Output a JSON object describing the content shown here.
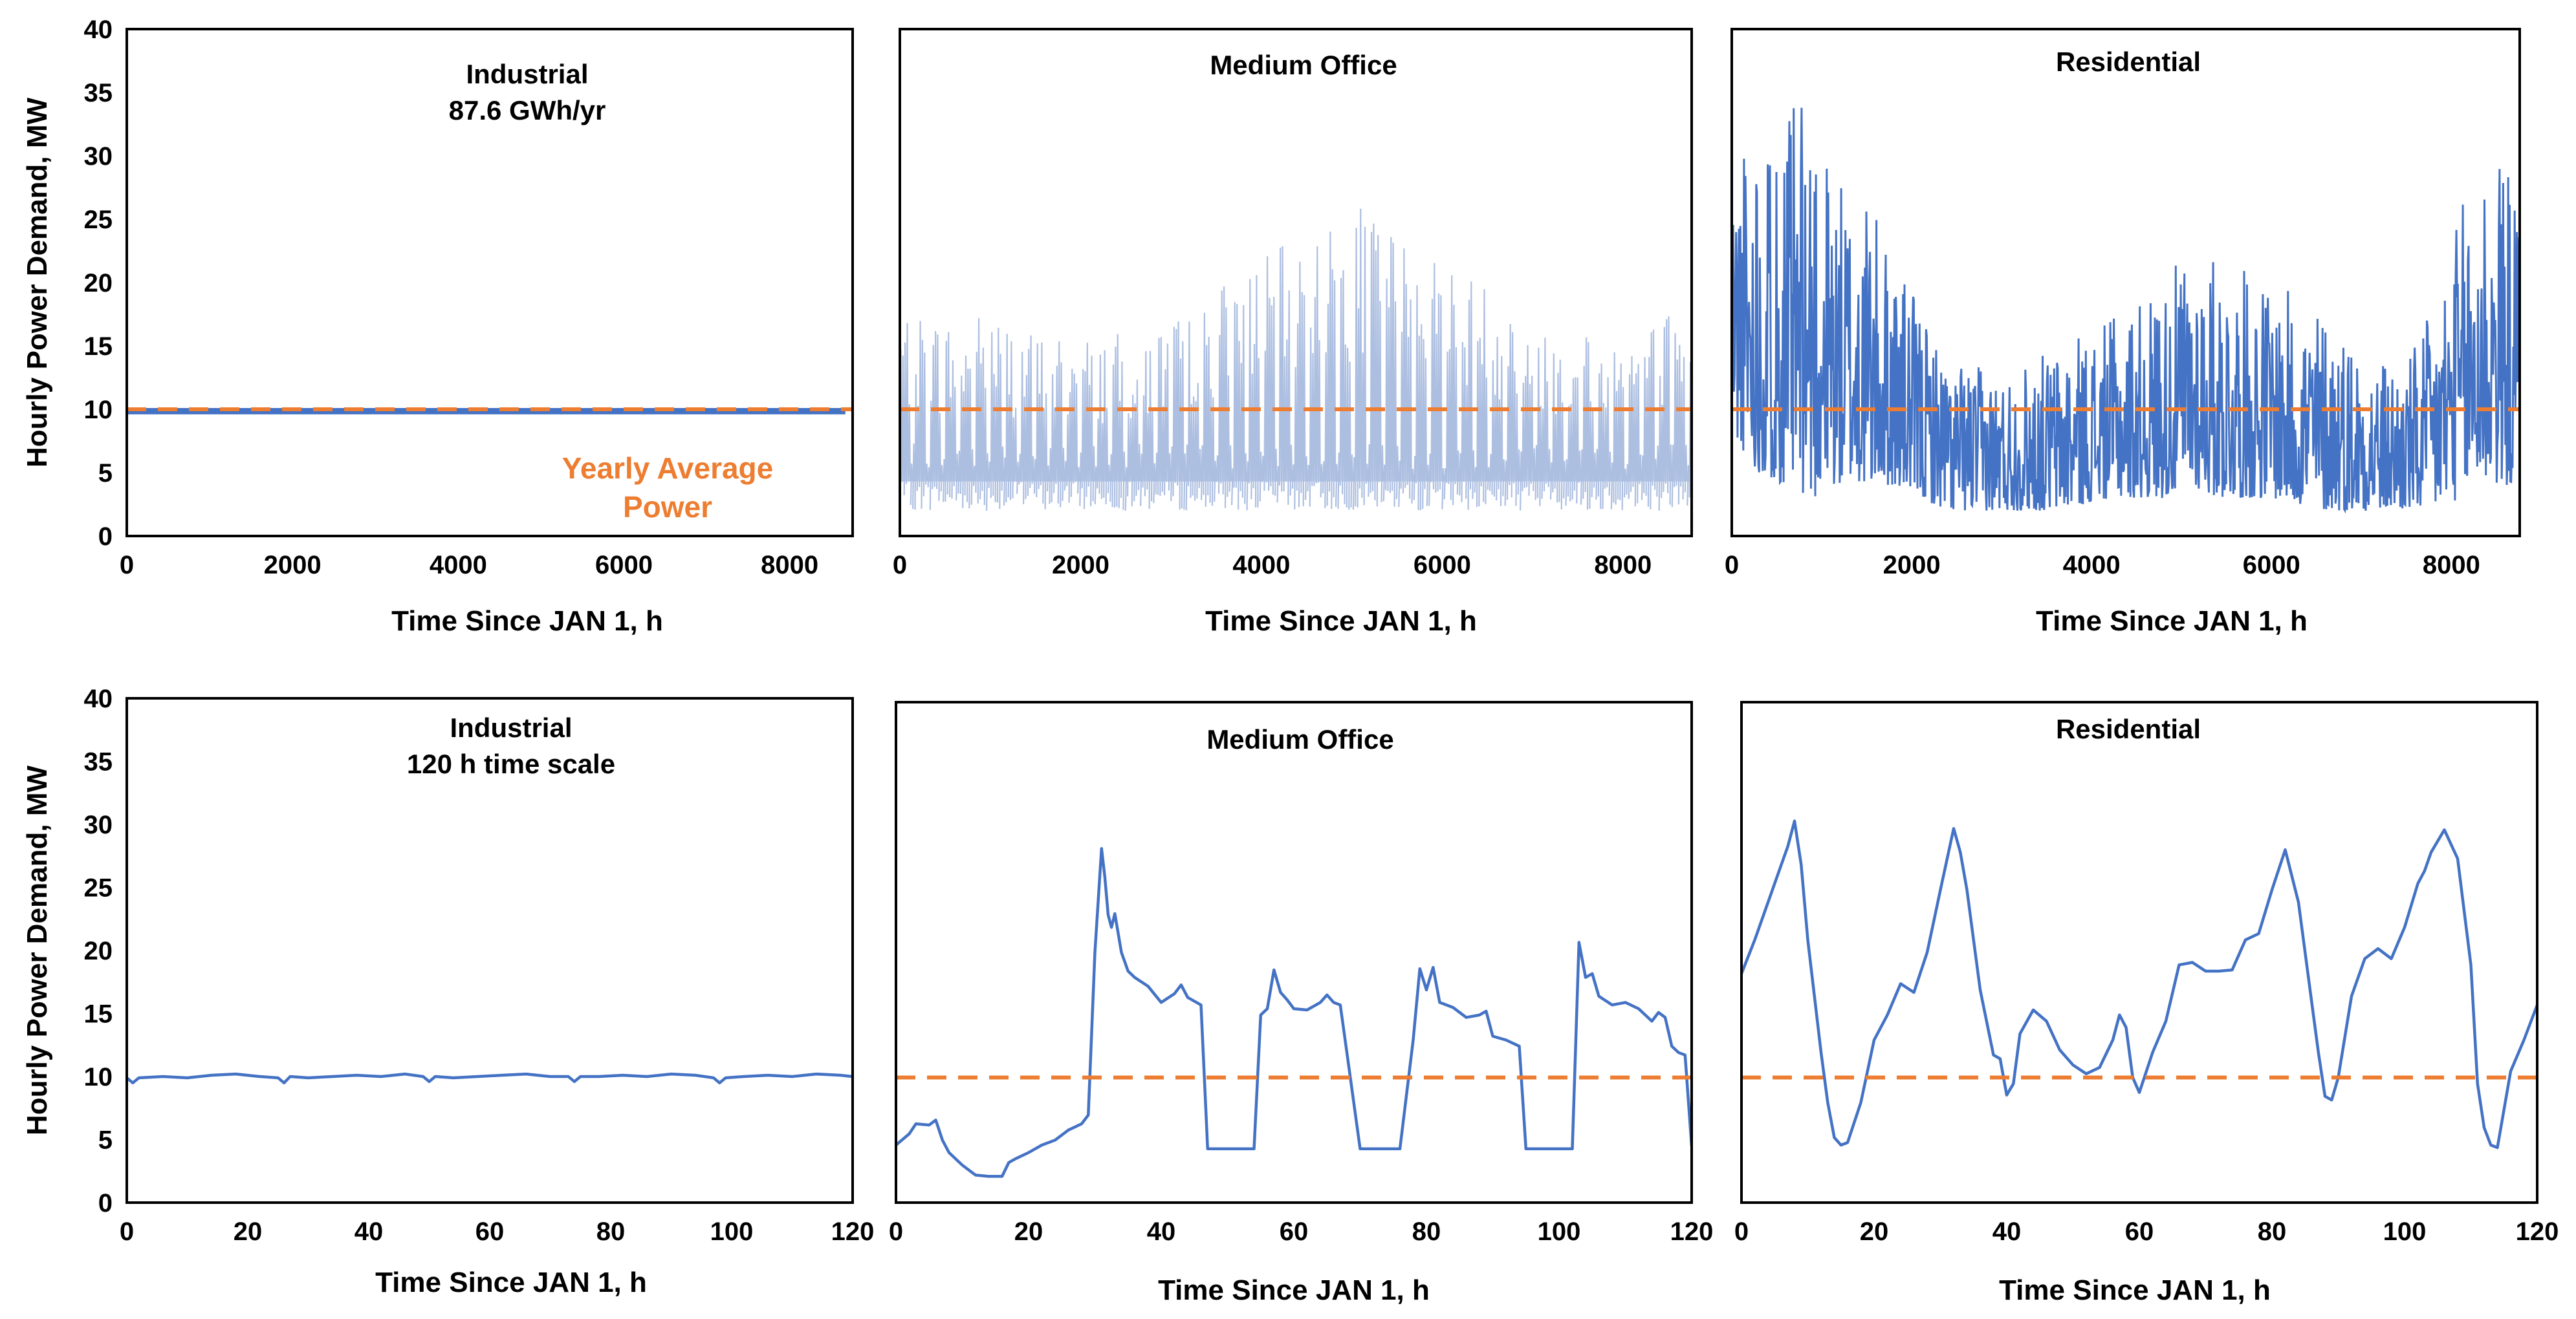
{
  "colors": {
    "series": "#4472c4",
    "average": "#ed7d31",
    "frame": "#000000"
  },
  "annotation": {
    "line1": "Yearly Average",
    "line2": "Power"
  },
  "chart_data": [
    {
      "type": "line",
      "id": "p1",
      "title": "Industrial",
      "subtitle": "87.6 GWh/yr",
      "xlabel": "Time Since JAN 1, h",
      "ylabel": "Hourly Power Demand, MW",
      "xlim": [
        0,
        8760
      ],
      "ylim": [
        0,
        40
      ],
      "xticks": [
        "0",
        "2000",
        "4000",
        "6000",
        "8000"
      ],
      "yticks": [
        "0",
        "5",
        "10",
        "15",
        "20",
        "25",
        "30",
        "35",
        "40"
      ],
      "average": 10,
      "series": [
        {
          "name": "Industrial",
          "style": "band",
          "min": 9.6,
          "max": 10.1
        }
      ]
    },
    {
      "type": "line",
      "id": "p2",
      "title": "Medium Office",
      "xlabel": "Time Since JAN 1, h",
      "ylabel": "",
      "xlim": [
        0,
        8760
      ],
      "ylim": [
        0,
        40
      ],
      "xticks": [
        "0",
        "2000",
        "4000",
        "6000",
        "8000"
      ],
      "yticks": [],
      "average": 10,
      "series": [
        {
          "name": "Medium Office",
          "style": "weekly-spikes",
          "base": 4.3,
          "min": 2.0,
          "envelope_x": [
            0,
            500,
            1000,
            1500,
            2000,
            2500,
            3000,
            3500,
            4000,
            4500,
            5000,
            5200,
            5500,
            6000,
            6500,
            7000,
            7500,
            8000,
            8500,
            8760
          ],
          "envelope_y": [
            18,
            17,
            18,
            16,
            16,
            16,
            17,
            20,
            22,
            24,
            25,
            27,
            24,
            22,
            20,
            18,
            17,
            16,
            18,
            16
          ]
        }
      ]
    },
    {
      "type": "line",
      "id": "p3",
      "title": "Residential",
      "xlabel": "Time Since JAN 1, h",
      "ylabel": "",
      "xlim": [
        0,
        8760
      ],
      "ylim": [
        0,
        40
      ],
      "xticks": [
        "0",
        "2000",
        "4000",
        "6000",
        "8000"
      ],
      "yticks": [],
      "average": 10,
      "series": [
        {
          "name": "Residential",
          "style": "noisy-envelope",
          "x": [
            0,
            300,
            600,
            900,
            1200,
            1500,
            1800,
            2100,
            2400,
            3000,
            3600,
            4200,
            4800,
            5100,
            5400,
            6000,
            6600,
            6900,
            7200,
            7500,
            7800,
            8100,
            8400,
            8760
          ],
          "upper": [
            30,
            34,
            33,
            36,
            28,
            27,
            22,
            18,
            14,
            13,
            15,
            17,
            20,
            23,
            22,
            20,
            18,
            16,
            14,
            14,
            18,
            26,
            32,
            27
          ],
          "lower": [
            8,
            5,
            4,
            3,
            4,
            4,
            4,
            3,
            2,
            2,
            2,
            3,
            3,
            4,
            3,
            3,
            2,
            2,
            2,
            2,
            2,
            3,
            4,
            4
          ]
        }
      ]
    },
    {
      "type": "line",
      "id": "p4",
      "title": "Industrial",
      "subtitle": "120 h time scale",
      "xlabel": "Time Since JAN 1, h",
      "ylabel": "Hourly Power Demand, MW",
      "xlim": [
        0,
        120
      ],
      "ylim": [
        0,
        40
      ],
      "xticks": [
        "0",
        "20",
        "40",
        "60",
        "80",
        "100",
        "120"
      ],
      "yticks": [
        "0",
        "5",
        "10",
        "15",
        "20",
        "25",
        "30",
        "35",
        "40"
      ],
      "average": null,
      "series": [
        {
          "name": "Industrial",
          "x": [
            0,
            1,
            2,
            6,
            10,
            14,
            18,
            22,
            25,
            26,
            27,
            30,
            34,
            38,
            42,
            46,
            49,
            50,
            51,
            54,
            58,
            62,
            66,
            70,
            73,
            74,
            75,
            78,
            82,
            86,
            90,
            94,
            97,
            98,
            99,
            102,
            106,
            110,
            114,
            118,
            120
          ],
          "y": [
            9.9,
            9.5,
            9.9,
            10.0,
            9.9,
            10.1,
            10.2,
            10.0,
            9.9,
            9.5,
            10.0,
            9.9,
            10.0,
            10.1,
            10.0,
            10.2,
            10.0,
            9.6,
            10.0,
            9.9,
            10.0,
            10.1,
            10.2,
            10.0,
            10.0,
            9.6,
            10.0,
            10.0,
            10.1,
            10.0,
            10.2,
            10.1,
            9.9,
            9.5,
            9.9,
            10.0,
            10.1,
            10.0,
            10.2,
            10.1,
            10.0
          ]
        }
      ]
    },
    {
      "type": "line",
      "id": "p5",
      "title": "Medium Office",
      "xlabel": "Time Since JAN 1, h",
      "ylabel": "",
      "xlim": [
        0,
        120
      ],
      "ylim": [
        0,
        40
      ],
      "xticks": [
        "0",
        "20",
        "40",
        "60",
        "80",
        "100",
        "120"
      ],
      "yticks": [],
      "average": 10,
      "series": [
        {
          "name": "Medium Office",
          "x": [
            0,
            2,
            3,
            5,
            6,
            7,
            8,
            10,
            12,
            14,
            16,
            17,
            18,
            20,
            22,
            24,
            26,
            28,
            29,
            30,
            31,
            31.5,
            32,
            32.5,
            33,
            34,
            35,
            36,
            38,
            40,
            42,
            43,
            44,
            46,
            47,
            48,
            52,
            54,
            55,
            56,
            57,
            58,
            59,
            60,
            62,
            64,
            65,
            66,
            67,
            68,
            70,
            71,
            72,
            76,
            78,
            79,
            80,
            81,
            82,
            84,
            86,
            88,
            89,
            90,
            92,
            94,
            95,
            96,
            100,
            102,
            103,
            104,
            105,
            106,
            108,
            110,
            112,
            114,
            115,
            116,
            117,
            118,
            119,
            120
          ],
          "y": [
            4.6,
            5.5,
            6.3,
            6.2,
            6.6,
            5.0,
            4.0,
            3.0,
            2.2,
            2.1,
            2.1,
            3.2,
            3.5,
            4.0,
            4.6,
            5.0,
            5.8,
            6.3,
            7.0,
            20.0,
            28.3,
            26.0,
            23.0,
            22.0,
            23.1,
            20.0,
            18.5,
            18.0,
            17.3,
            16.0,
            16.7,
            17.4,
            16.4,
            15.8,
            4.3,
            4.3,
            4.3,
            4.3,
            15.0,
            15.5,
            18.6,
            16.8,
            16.2,
            15.5,
            15.4,
            16.0,
            16.6,
            16.0,
            15.8,
            12.0,
            4.3,
            4.3,
            4.3,
            4.3,
            13.0,
            18.7,
            17.0,
            18.8,
            16.0,
            15.6,
            14.8,
            15.0,
            15.3,
            13.3,
            13.0,
            12.5,
            4.3,
            4.3,
            4.3,
            4.3,
            20.8,
            18.0,
            18.3,
            16.5,
            15.8,
            16.0,
            15.5,
            14.5,
            15.2,
            14.8,
            12.5,
            12.0,
            11.8,
            4.5
          ]
        }
      ]
    },
    {
      "type": "line",
      "id": "p6",
      "title": "Residential",
      "xlabel": "Time Since JAN 1, h",
      "ylabel": "",
      "xlim": [
        0,
        120
      ],
      "ylim": [
        0,
        40
      ],
      "xticks": [
        "0",
        "20",
        "40",
        "60",
        "80",
        "100",
        "120"
      ],
      "yticks": [],
      "average": 10,
      "series": [
        {
          "name": "Residential",
          "x": [
            0,
            2,
            4,
            6,
            7,
            8,
            9,
            10,
            12,
            13,
            14,
            15,
            16,
            18,
            20,
            22,
            24,
            26,
            28,
            30,
            32,
            33,
            34,
            36,
            38,
            39,
            40,
            41,
            42,
            44,
            46,
            48,
            50,
            52,
            54,
            56,
            57,
            58,
            59,
            60,
            62,
            64,
            66,
            68,
            70,
            72,
            74,
            76,
            78,
            80,
            82,
            84,
            86,
            87,
            88,
            89,
            90,
            92,
            94,
            96,
            98,
            100,
            102,
            103,
            104,
            106,
            108,
            110,
            111,
            112,
            113,
            114,
            116,
            118,
            120
          ],
          "y": [
            18.3,
            21.0,
            24.0,
            27.0,
            28.5,
            30.5,
            27.0,
            21.0,
            12.0,
            8.0,
            5.2,
            4.6,
            4.8,
            8.0,
            13.0,
            15.0,
            17.5,
            16.8,
            20.0,
            25.0,
            29.9,
            28.0,
            25.0,
            17.0,
            11.8,
            11.5,
            8.6,
            9.5,
            13.5,
            15.4,
            14.5,
            12.2,
            11.0,
            10.3,
            10.8,
            13.0,
            15.0,
            14.0,
            10.0,
            8.8,
            12.0,
            14.5,
            19.0,
            19.2,
            18.5,
            18.5,
            18.6,
            21.0,
            21.5,
            25.0,
            28.2,
            24.0,
            16.0,
            12.0,
            8.5,
            8.2,
            10.0,
            16.5,
            19.5,
            20.3,
            19.5,
            22.0,
            25.5,
            26.5,
            28.0,
            29.8,
            27.5,
            19.0,
            9.5,
            6.0,
            4.6,
            4.4,
            10.5,
            13.0,
            15.8
          ]
        }
      ]
    }
  ]
}
